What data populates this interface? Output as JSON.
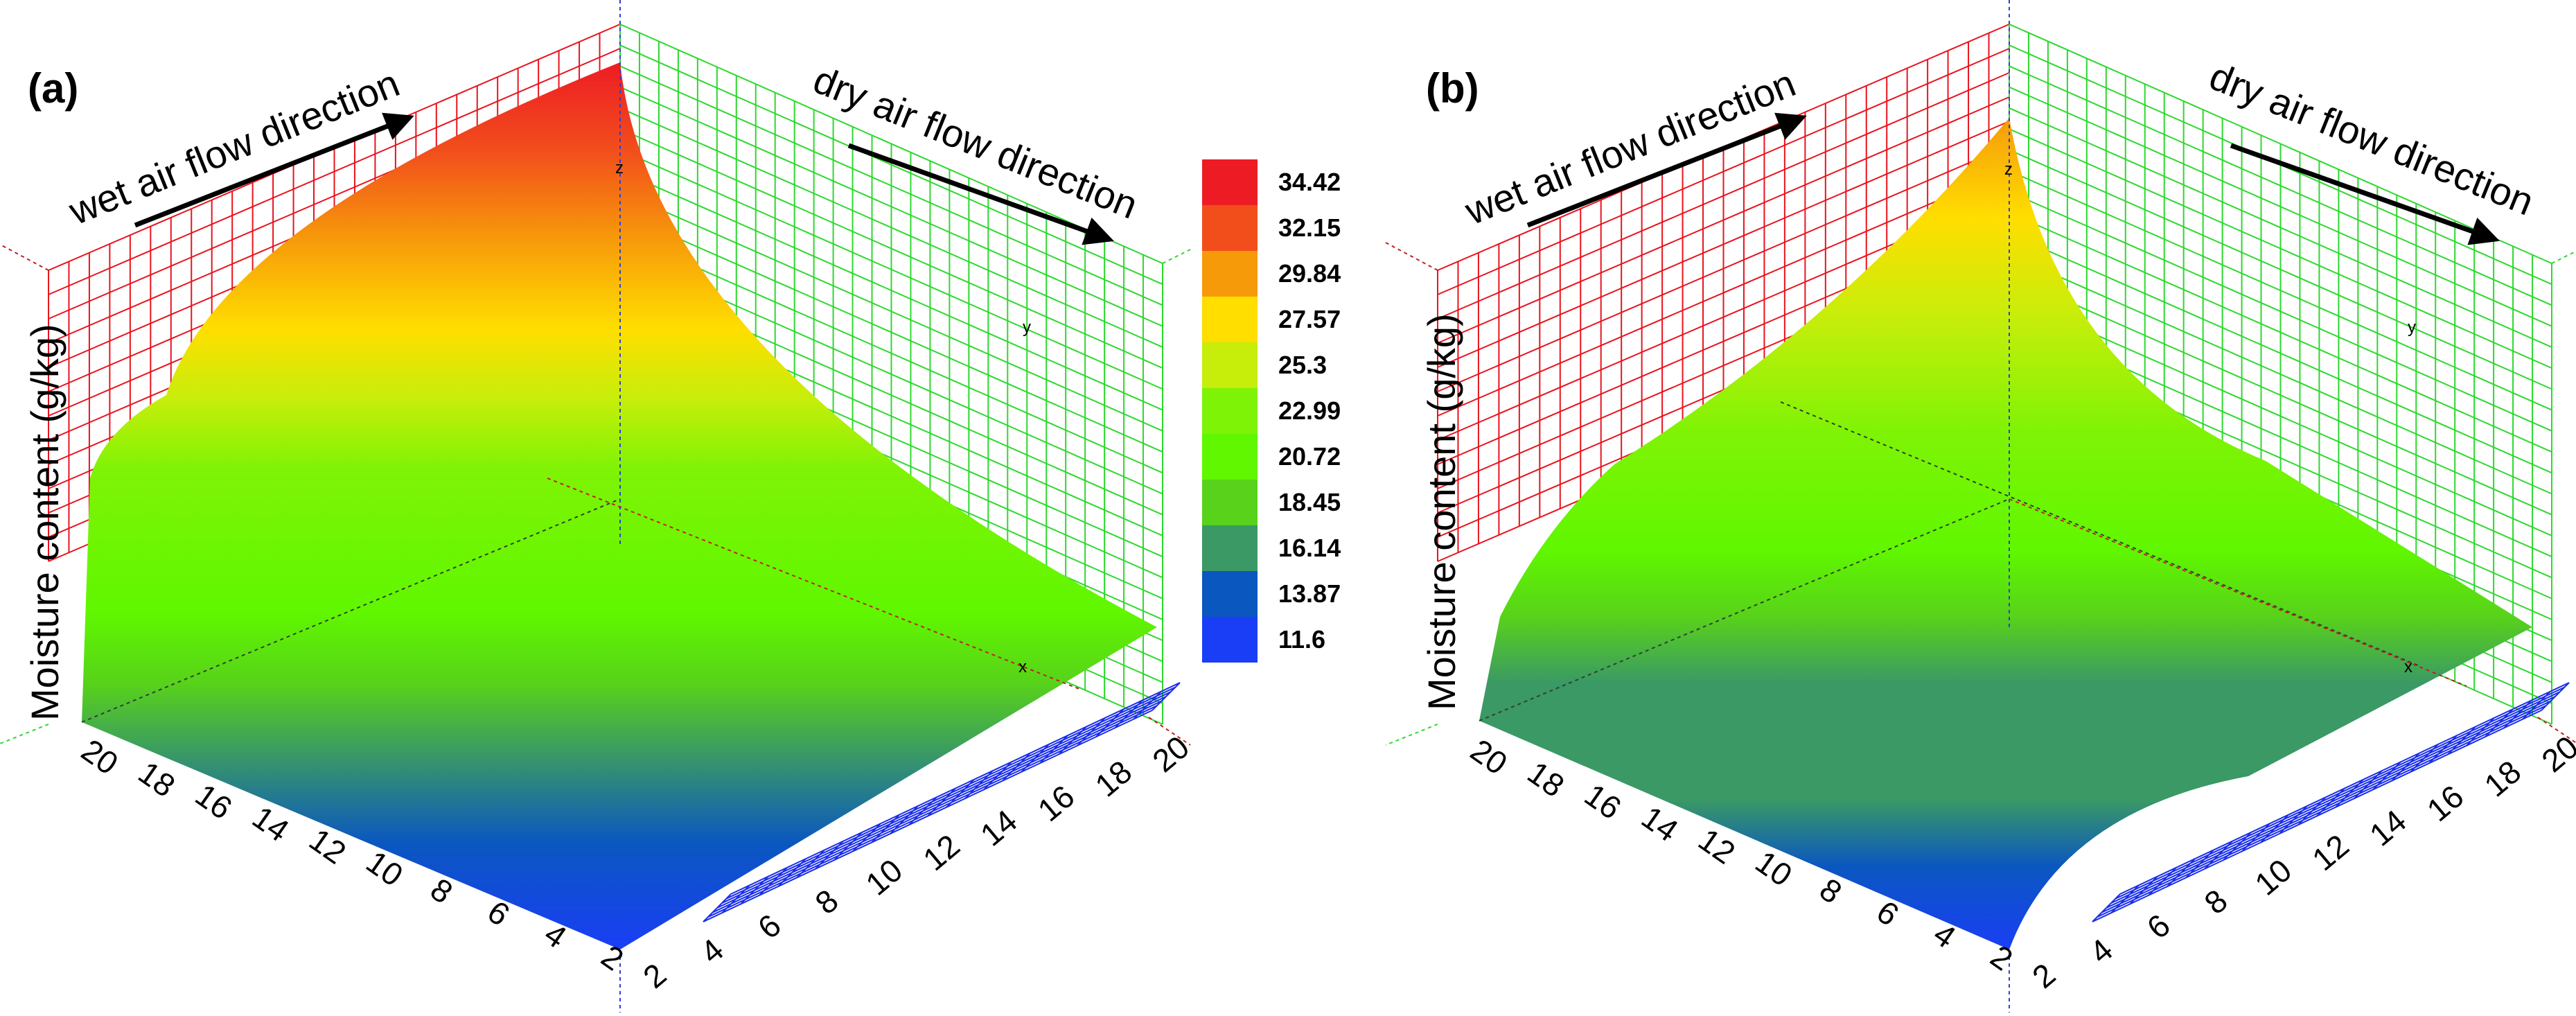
{
  "chart_data": [
    {
      "type": "surface",
      "panel_label": "(a)",
      "zlabel": "Moisture content (g/kg)",
      "annotations": [
        "wet air flow direction",
        "dry air flow direction"
      ],
      "axis_letters": [
        "z",
        "y",
        "x"
      ],
      "x_ticks": [
        "2",
        "4",
        "6",
        "8",
        "10",
        "12",
        "14",
        "16",
        "18",
        "20"
      ],
      "y_ticks": [
        "20",
        "18",
        "16",
        "14",
        "12",
        "10",
        "8",
        "6",
        "4",
        "2"
      ],
      "corner_values": {
        "back_top": 34.42,
        "left_wall_top": 25.6,
        "right_edge": 16.5,
        "front_low": 11.6
      }
    },
    {
      "type": "surface",
      "panel_label": "(b)",
      "zlabel": "Moisture content (g/kg)",
      "annotations": [
        "wet air flow direction",
        "dry air flow direction"
      ],
      "axis_letters": [
        "z",
        "y",
        "x"
      ],
      "x_ticks": [
        "2",
        "4",
        "6",
        "8",
        "10",
        "12",
        "14",
        "16",
        "18",
        "20"
      ],
      "y_ticks": [
        "20",
        "18",
        "16",
        "14",
        "12",
        "10",
        "8",
        "6",
        "4",
        "2"
      ],
      "corner_values": {
        "back_top": 30.5,
        "plateau": 16.14,
        "front_low": 11.6
      }
    }
  ],
  "legend": {
    "levels": [
      "34.42",
      "32.15",
      "29.84",
      "27.57",
      "25.3",
      "22.99",
      "20.72",
      "18.45",
      "16.14",
      "13.87",
      "11.6"
    ],
    "colors": [
      "#ed1c24",
      "#f24e1c",
      "#f79a0a",
      "#ffde00",
      "#c6ee0a",
      "#7ef305",
      "#60f700",
      "#58d21a",
      "#3a9965",
      "#0a57c0",
      "#1a3ef5"
    ]
  },
  "colors": {
    "back_wall_left": "#e8141e",
    "back_wall_right": "#2ed82e",
    "floor_grid": "#1a2ee8",
    "arrow": "#000000"
  }
}
